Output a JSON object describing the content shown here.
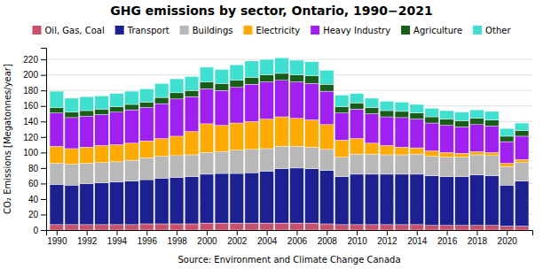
{
  "chart_data": {
    "type": "bar",
    "stacked": true,
    "title": "GHG emissions by sector, Ontario, 1990−2021",
    "ylabel": "CO₂ Emissions [Megatonnes/year]",
    "annotations": [
      "Source: Environment and Climate Change Canada"
    ],
    "x": [
      1990,
      1991,
      1992,
      1993,
      1994,
      1995,
      1996,
      1997,
      1998,
      1999,
      2000,
      2001,
      2002,
      2003,
      2004,
      2005,
      2006,
      2007,
      2008,
      2009,
      2010,
      2011,
      2012,
      2013,
      2014,
      2015,
      2016,
      2017,
      2018,
      2019,
      2020,
      2021
    ],
    "xlim": [
      1989.3,
      2021.7
    ],
    "xticks": [
      1990,
      1992,
      1994,
      1996,
      1998,
      2000,
      2002,
      2004,
      2006,
      2008,
      2010,
      2012,
      2014,
      2016,
      2018,
      2020
    ],
    "ylim": [
      0,
      235
    ],
    "yticks": [
      0,
      20,
      40,
      60,
      80,
      100,
      120,
      140,
      160,
      180,
      200,
      220
    ],
    "grid": true,
    "legend": "top",
    "series": [
      {
        "name": "Oil, Gas, Coal",
        "color": "#c8506a",
        "values": [
          7,
          7,
          7,
          7,
          7,
          7,
          8,
          8,
          8,
          8,
          9,
          9,
          9,
          9,
          9,
          9,
          9,
          9,
          8,
          7,
          7,
          7,
          7,
          7,
          7,
          6,
          6,
          6,
          6,
          6,
          5,
          5
        ]
      },
      {
        "name": "Transport",
        "color": "#1c2090",
        "values": [
          52,
          51,
          53,
          54,
          55,
          56,
          57,
          59,
          60,
          61,
          63,
          64,
          64,
          65,
          67,
          70,
          71,
          70,
          69,
          62,
          65,
          65,
          65,
          65,
          65,
          64,
          63,
          63,
          65,
          64,
          53,
          58
        ]
      },
      {
        "name": "Buildings",
        "color": "#b8b8b8",
        "values": [
          27,
          27,
          26,
          26,
          26,
          27,
          28,
          28,
          28,
          28,
          28,
          28,
          30,
          30,
          29,
          29,
          28,
          28,
          27,
          25,
          26,
          26,
          25,
          25,
          26,
          25,
          25,
          25,
          26,
          26,
          24,
          24
        ]
      },
      {
        "name": "Electricity",
        "color": "#ffaa00",
        "values": [
          22,
          20,
          21,
          22,
          22,
          22,
          22,
          23,
          25,
          30,
          37,
          34,
          35,
          36,
          38,
          38,
          36,
          35,
          32,
          22,
          20,
          14,
          12,
          10,
          8,
          7,
          6,
          5,
          4,
          4,
          4,
          4
        ]
      },
      {
        "name": "Heavy Industry",
        "color": "#a020f0",
        "values": [
          43,
          40,
          40,
          40,
          42,
          43,
          43,
          45,
          48,
          45,
          45,
          45,
          46,
          48,
          48,
          47,
          47,
          47,
          43,
          35,
          38,
          38,
          37,
          38,
          37,
          36,
          35,
          34,
          35,
          34,
          28,
          30
        ]
      },
      {
        "name": "Agriculture",
        "color": "#1a5c1a",
        "values": [
          7,
          7,
          7,
          7,
          7,
          7,
          7,
          8,
          8,
          8,
          9,
          9,
          9,
          9,
          9,
          9,
          9,
          10,
          9,
          8,
          8,
          8,
          8,
          8,
          8,
          8,
          8,
          8,
          8,
          8,
          7,
          7
        ]
      },
      {
        "name": "Other",
        "color": "#40e0d0",
        "values": [
          21,
          18,
          18,
          17,
          17,
          17,
          17,
          18,
          18,
          18,
          19,
          18,
          20,
          21,
          20,
          20,
          19,
          18,
          18,
          15,
          12,
          12,
          12,
          12,
          11,
          11,
          11,
          11,
          11,
          11,
          10,
          10
        ]
      }
    ]
  }
}
